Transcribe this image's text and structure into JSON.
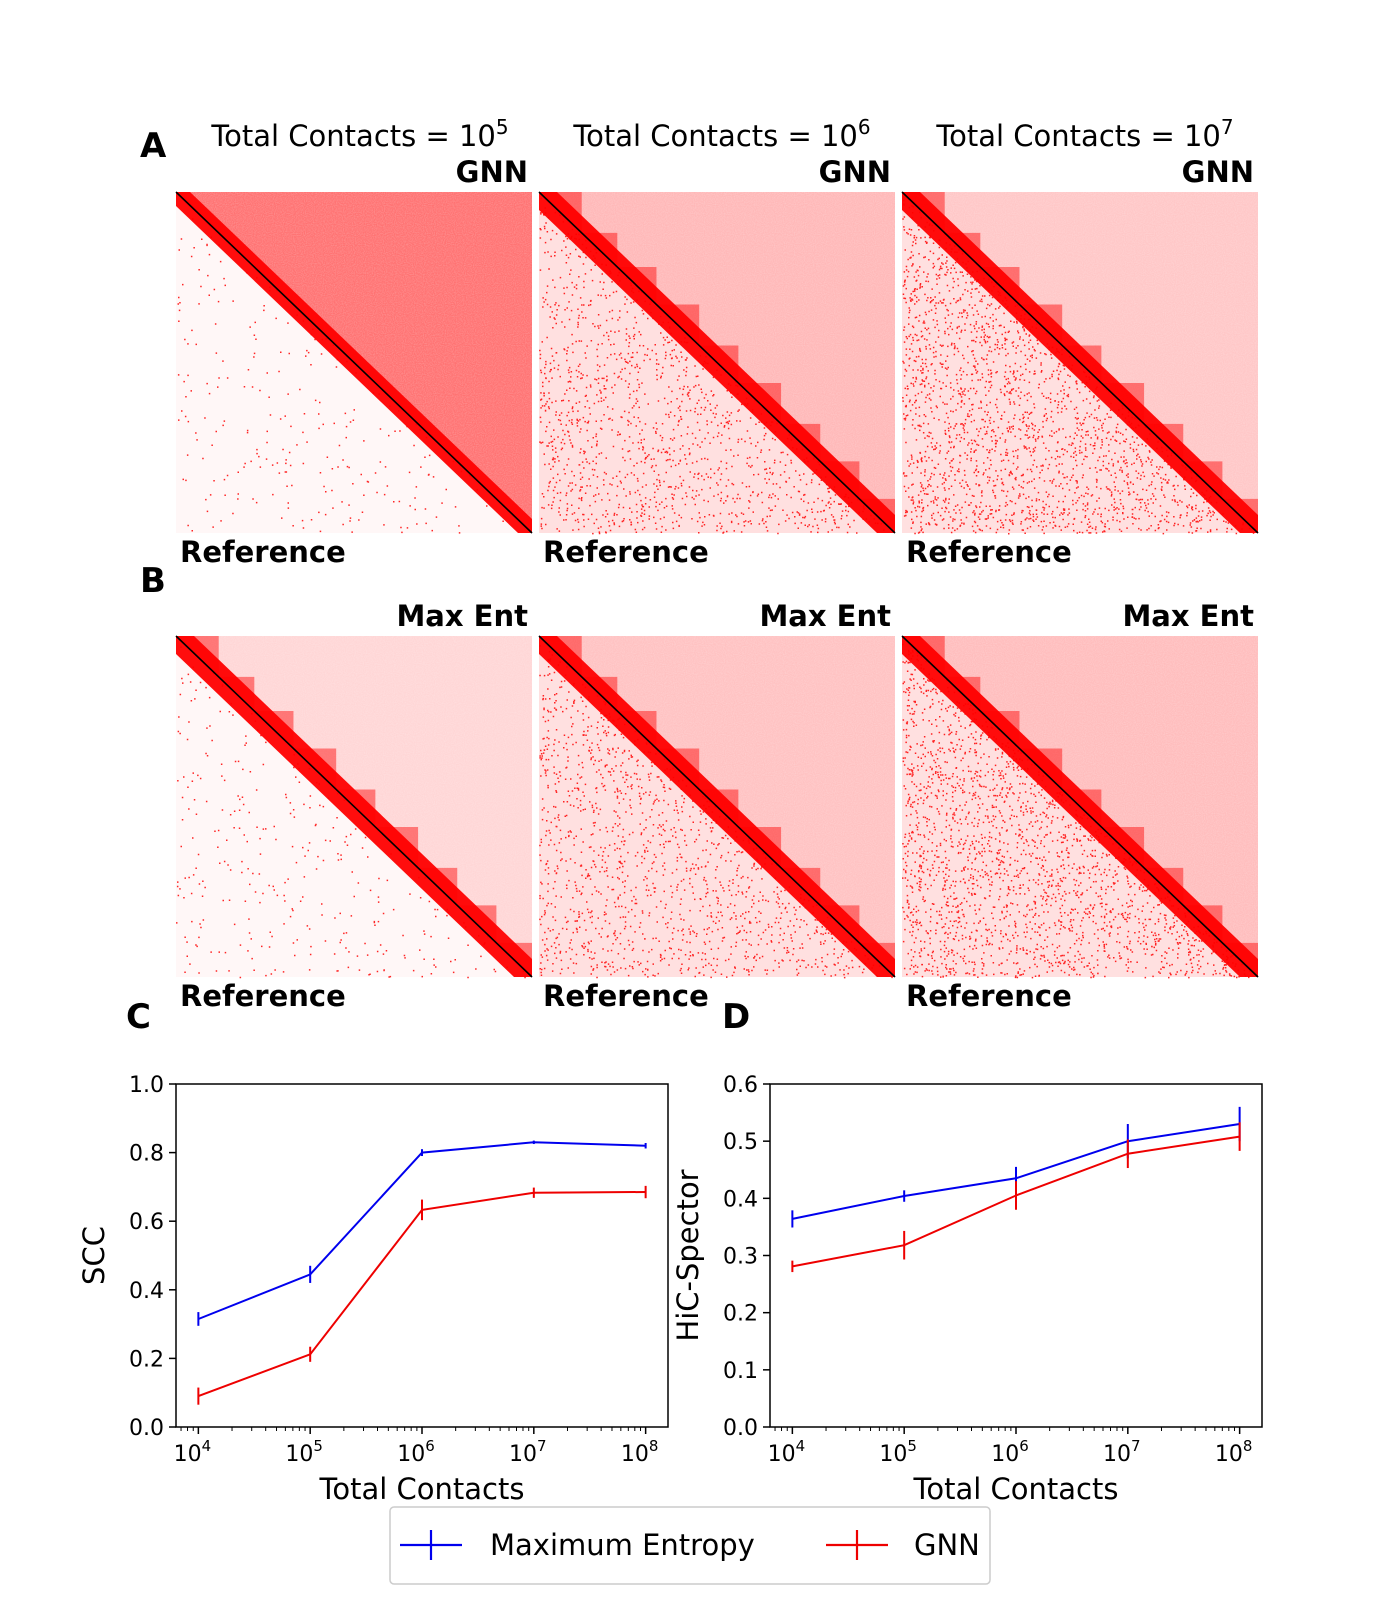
{
  "panel_labels": {
    "a": "A",
    "b": "B",
    "c": "C",
    "d": "D"
  },
  "heatmap_row_a": {
    "column_titles": [
      {
        "base": "Total Contacts = 10",
        "exp": "5"
      },
      {
        "base": "Total Contacts = 10",
        "exp": "6"
      },
      {
        "base": "Total Contacts = 10",
        "exp": "7"
      }
    ],
    "upper_label": "GNN",
    "lower_label": "Reference"
  },
  "heatmap_row_b": {
    "upper_label": "Max Ent",
    "lower_label": "Reference"
  },
  "colors": {
    "blue": "#0000ee",
    "red": "#ee0000",
    "heat": "#ff0000"
  },
  "legend": {
    "entries": [
      "Maximum Entropy",
      "GNN"
    ]
  },
  "chart_data": [
    {
      "type": "line",
      "panel": "C",
      "xlabel": "Total Contacts",
      "ylabel": "SCC",
      "xscale": "log",
      "xlim": [
        10000,
        100000000
      ],
      "ylim": [
        0.0,
        1.0
      ],
      "yticks": [
        "0.0",
        "0.2",
        "0.4",
        "0.6",
        "0.8",
        "1.0"
      ],
      "xtick_base": "10",
      "xtick_exps": [
        "4",
        "5",
        "6",
        "7",
        "8"
      ],
      "x": [
        10000,
        100000,
        1000000,
        10000000,
        100000000
      ],
      "series": [
        {
          "name": "Maximum Entropy",
          "color": "#0000ee",
          "values": [
            0.315,
            0.445,
            0.8,
            0.83,
            0.82
          ],
          "errors": [
            0.02,
            0.025,
            0.01,
            0.005,
            0.008
          ]
        },
        {
          "name": "GNN",
          "color": "#ee0000",
          "values": [
            0.09,
            0.212,
            0.633,
            0.683,
            0.685
          ],
          "errors": [
            0.025,
            0.022,
            0.03,
            0.015,
            0.018
          ]
        }
      ]
    },
    {
      "type": "line",
      "panel": "D",
      "xlabel": "Total Contacts",
      "ylabel": "HiC-Spector",
      "xscale": "log",
      "xlim": [
        10000,
        100000000
      ],
      "ylim": [
        0.0,
        0.6
      ],
      "yticks": [
        "0.0",
        "0.1",
        "0.2",
        "0.3",
        "0.4",
        "0.5",
        "0.6"
      ],
      "xtick_base": "10",
      "xtick_exps": [
        "4",
        "5",
        "6",
        "7",
        "8"
      ],
      "x": [
        10000,
        100000,
        1000000,
        10000000,
        100000000
      ],
      "series": [
        {
          "name": "Maximum Entropy",
          "color": "#0000ee",
          "values": [
            0.364,
            0.404,
            0.435,
            0.5,
            0.53
          ],
          "errors": [
            0.015,
            0.01,
            0.02,
            0.03,
            0.03
          ]
        },
        {
          "name": "GNN",
          "color": "#ee0000",
          "values": [
            0.281,
            0.318,
            0.405,
            0.478,
            0.508
          ],
          "errors": [
            0.01,
            0.025,
            0.025,
            0.025,
            0.025
          ]
        }
      ]
    }
  ]
}
